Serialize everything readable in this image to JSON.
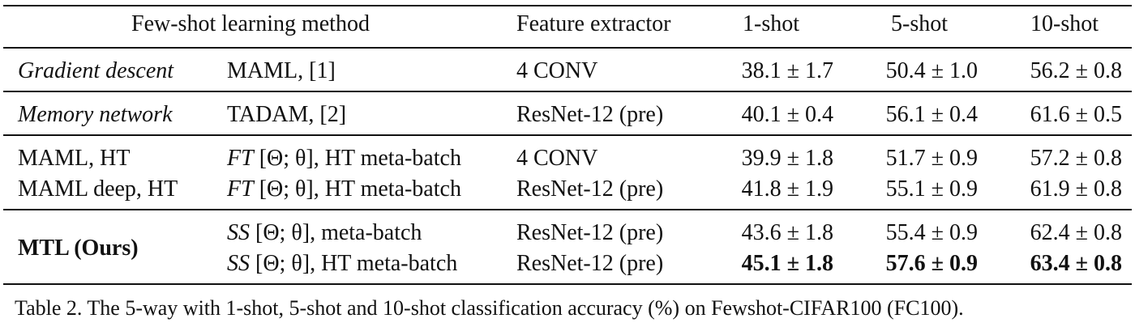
{
  "header": {
    "method": "Few-shot learning method",
    "feature_extractor": "Feature extractor",
    "shot1": "1-shot",
    "shot5": "5-shot",
    "shot10": "10-shot"
  },
  "rows": [
    {
      "group": "Gradient descent",
      "method": "MAML, [1]",
      "feature_extractor": "4 CONV",
      "shot1": "38.1 ± 1.7",
      "shot5": "50.4 ± 1.0",
      "shot10": "56.2 ± 0.8"
    },
    {
      "group": "Memory network",
      "method": "TADAM, [2]",
      "feature_extractor": "ResNet-12 (pre)",
      "shot1": "40.1 ± 0.4",
      "shot5": "56.1 ± 0.4",
      "shot10": "61.6 ± 0.5"
    },
    {
      "group": "MAML, HT",
      "method_prefix": "FT",
      "method_params": "[Θ; θ]",
      "method_suffix": ", HT meta-batch",
      "feature_extractor": "4 CONV",
      "shot1": "39.9 ± 1.8",
      "shot5": "51.7 ± 0.9",
      "shot10": "57.2 ± 0.8"
    },
    {
      "group": "MAML deep, HT",
      "method_prefix": "FT",
      "method_params": "[Θ; θ]",
      "method_suffix": ", HT meta-batch",
      "feature_extractor": "ResNet-12 (pre)",
      "shot1": "41.8 ± 1.9",
      "shot5": "55.1 ± 0.9",
      "shot10": "61.9 ± 0.8"
    },
    {
      "group": "MTL (Ours)",
      "method_prefix": "SS",
      "method_params": "[Θ; θ]",
      "method_suffix": ", meta-batch",
      "feature_extractor": "ResNet-12 (pre)",
      "shot1": "43.6 ± 1.8",
      "shot5": "55.4 ± 0.9",
      "shot10": "62.4 ± 0.8"
    },
    {
      "method_prefix": "SS",
      "method_params": "[Θ; θ]",
      "method_suffix": ", HT meta-batch",
      "feature_extractor": "ResNet-12 (pre)",
      "shot1": "45.1 ± 1.8",
      "shot5": "57.6 ± 0.9",
      "shot10": "63.4 ± 0.8"
    }
  ],
  "caption": "Table 2. The 5-way with 1-shot, 5-shot and 10-shot classification accuracy (%) on Fewshot-CIFAR100 (FC100)."
}
